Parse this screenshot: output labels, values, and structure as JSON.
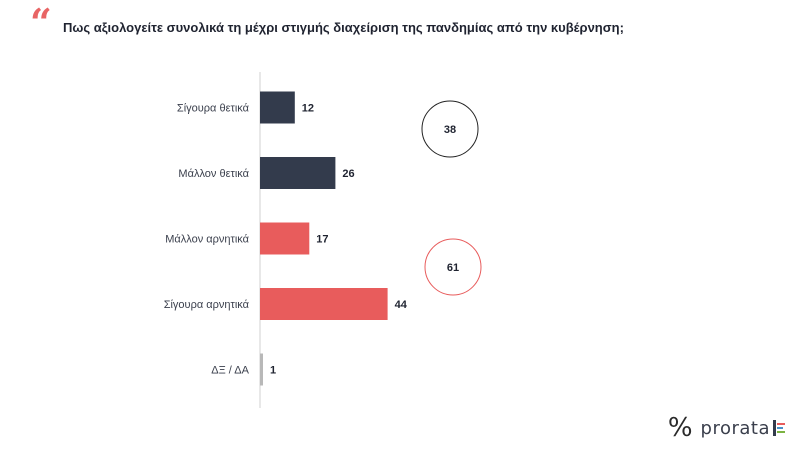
{
  "header": {
    "question": "Πως αξιολογείτε συνολικά τη μέχρι στιγμής διαχείριση της πανδημίας από την κυβέρνηση;"
  },
  "chart_data": {
    "type": "bar",
    "orientation": "horizontal",
    "categories": [
      "Σίγουρα θετικά",
      "Μάλλον θετικά",
      "Μάλλον αρνητικά",
      "Σίγουρα αρνητικά",
      "ΔΞ / ΔΑ"
    ],
    "values": [
      12,
      26,
      17,
      44,
      1
    ],
    "colors": [
      "#333b4c",
      "#333b4c",
      "#e85c5c",
      "#e85c5c",
      "#b8b8b8"
    ],
    "groups": [
      {
        "total": 38,
        "color": "#222222"
      },
      {
        "total": 61,
        "color": "#e85c5c"
      }
    ],
    "title": "",
    "xlabel": "",
    "ylabel": "",
    "xlim": [
      0,
      100
    ],
    "grid": false
  },
  "branding": {
    "logo_text": "prorata",
    "logo_symbol": "%"
  }
}
